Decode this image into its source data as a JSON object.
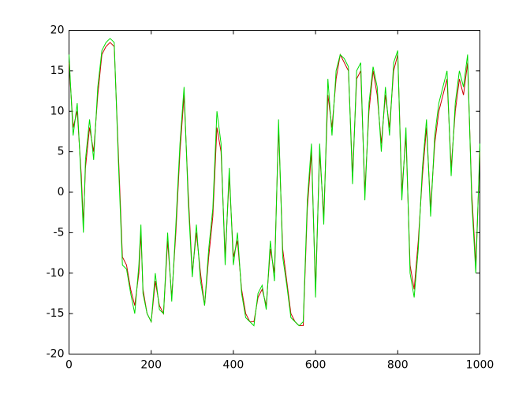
{
  "chart_data": {
    "type": "line",
    "x": [
      0,
      10,
      20,
      30,
      35,
      40,
      50,
      60,
      70,
      80,
      90,
      100,
      110,
      120,
      130,
      140,
      150,
      160,
      170,
      175,
      180,
      190,
      200,
      210,
      220,
      230,
      240,
      250,
      260,
      270,
      280,
      290,
      300,
      310,
      320,
      330,
      340,
      350,
      360,
      370,
      380,
      390,
      400,
      410,
      420,
      430,
      440,
      450,
      460,
      470,
      480,
      490,
      500,
      510,
      520,
      530,
      540,
      550,
      560,
      570,
      580,
      590,
      600,
      610,
      620,
      630,
      640,
      650,
      660,
      670,
      680,
      690,
      700,
      710,
      720,
      730,
      740,
      750,
      760,
      770,
      780,
      790,
      800,
      810,
      820,
      830,
      840,
      850,
      860,
      870,
      880,
      890,
      900,
      910,
      920,
      930,
      940,
      950,
      960,
      970,
      980,
      990,
      1000
    ],
    "series": [
      {
        "color": "#cc0000",
        "values": [
          16,
          8,
          10,
          2,
          -4,
          3,
          8,
          5,
          12,
          17,
          18,
          18.5,
          18,
          5,
          -8,
          -9,
          -12,
          -14,
          -10,
          -5,
          -12,
          -15,
          -16,
          -11,
          -14,
          -15,
          -6,
          -13,
          -5,
          5,
          12,
          0,
          -10,
          -5,
          -10,
          -14,
          -8,
          -3,
          8,
          5,
          -8,
          2,
          -8,
          -6,
          -12,
          -15,
          -16,
          -16,
          -13,
          -12,
          -14,
          -7,
          -10,
          8,
          -7,
          -11,
          -15,
          -16,
          -16.5,
          -16.5,
          -2,
          5,
          -12,
          5,
          -3,
          12,
          8,
          14,
          17,
          16,
          15,
          2,
          14,
          15,
          0,
          10,
          15,
          12,
          6,
          12,
          8,
          15,
          17,
          0,
          7,
          -9,
          -12,
          -6,
          2,
          8,
          -2,
          6,
          10,
          12,
          14,
          3,
          10,
          14,
          12,
          16,
          0,
          -9,
          5
        ]
      },
      {
        "color": "#00dd00",
        "values": [
          17,
          7,
          11,
          1,
          -5,
          4,
          9,
          4,
          13,
          17.5,
          18.5,
          19,
          18.5,
          4,
          -9,
          -9.5,
          -12.5,
          -15,
          -9,
          -4,
          -12.5,
          -15,
          -16,
          -10,
          -14.5,
          -15,
          -5,
          -13.5,
          -4,
          6,
          13,
          -1,
          -10.5,
          -4,
          -11,
          -14,
          -7,
          -2,
          10,
          6,
          -9,
          3,
          -9,
          -5,
          -12.5,
          -15.5,
          -16,
          -16.5,
          -12.5,
          -11.5,
          -14.5,
          -6,
          -11,
          9,
          -8,
          -11.5,
          -15.5,
          -16,
          -16.5,
          -16,
          -1,
          6,
          -13,
          6,
          -4,
          14,
          7,
          15,
          17,
          16.5,
          15.5,
          1,
          15,
          16,
          -1,
          11,
          15.5,
          13,
          5,
          13,
          7,
          16,
          17.5,
          -1,
          8,
          -10,
          -13,
          -7,
          3,
          9,
          -3,
          7,
          11,
          13,
          15,
          2,
          11,
          15,
          13,
          17,
          -1,
          -10,
          6
        ]
      }
    ],
    "xlim": [
      0,
      1000
    ],
    "xticks": [
      0,
      200,
      400,
      600,
      800,
      1000
    ],
    "ylim": [
      -20,
      20
    ],
    "yticks": [
      -20,
      -15,
      -10,
      -5,
      0,
      5,
      10,
      15,
      20
    ]
  }
}
